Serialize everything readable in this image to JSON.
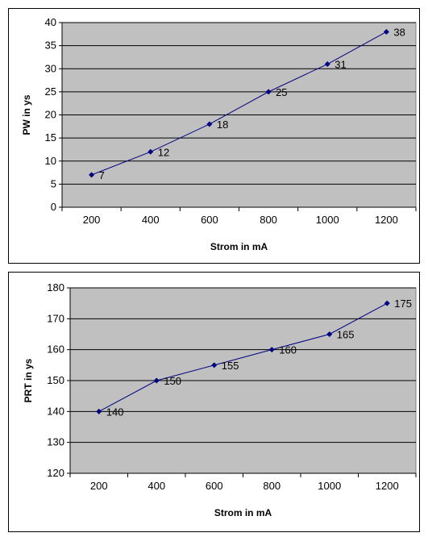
{
  "chart_data": [
    {
      "type": "line",
      "title": "",
      "xlabel": "Strom in mA",
      "ylabel": "PW in ys",
      "categories": [
        "200",
        "400",
        "600",
        "800",
        "1000",
        "1200"
      ],
      "series": [
        {
          "values": [
            7,
            12,
            18,
            25,
            31,
            38
          ]
        }
      ],
      "ylim": [
        0,
        40
      ],
      "yticks": [
        "0",
        "5",
        "10",
        "15",
        "20",
        "25",
        "30",
        "35",
        "40"
      ],
      "grid": true,
      "legend": "none",
      "plot_background": "#c0c0c0",
      "line_color": "#000080"
    },
    {
      "type": "line",
      "title": "",
      "xlabel": "Strom in mA",
      "ylabel": "PRT in ys",
      "categories": [
        "200",
        "400",
        "600",
        "800",
        "1000",
        "1200"
      ],
      "series": [
        {
          "values": [
            140,
            150,
            155,
            160,
            165,
            175
          ]
        }
      ],
      "ylim": [
        120,
        180
      ],
      "yticks": [
        "120",
        "130",
        "140",
        "150",
        "160",
        "170",
        "180"
      ],
      "grid": true,
      "legend": "none",
      "plot_background": "#c0c0c0",
      "line_color": "#000080"
    }
  ]
}
